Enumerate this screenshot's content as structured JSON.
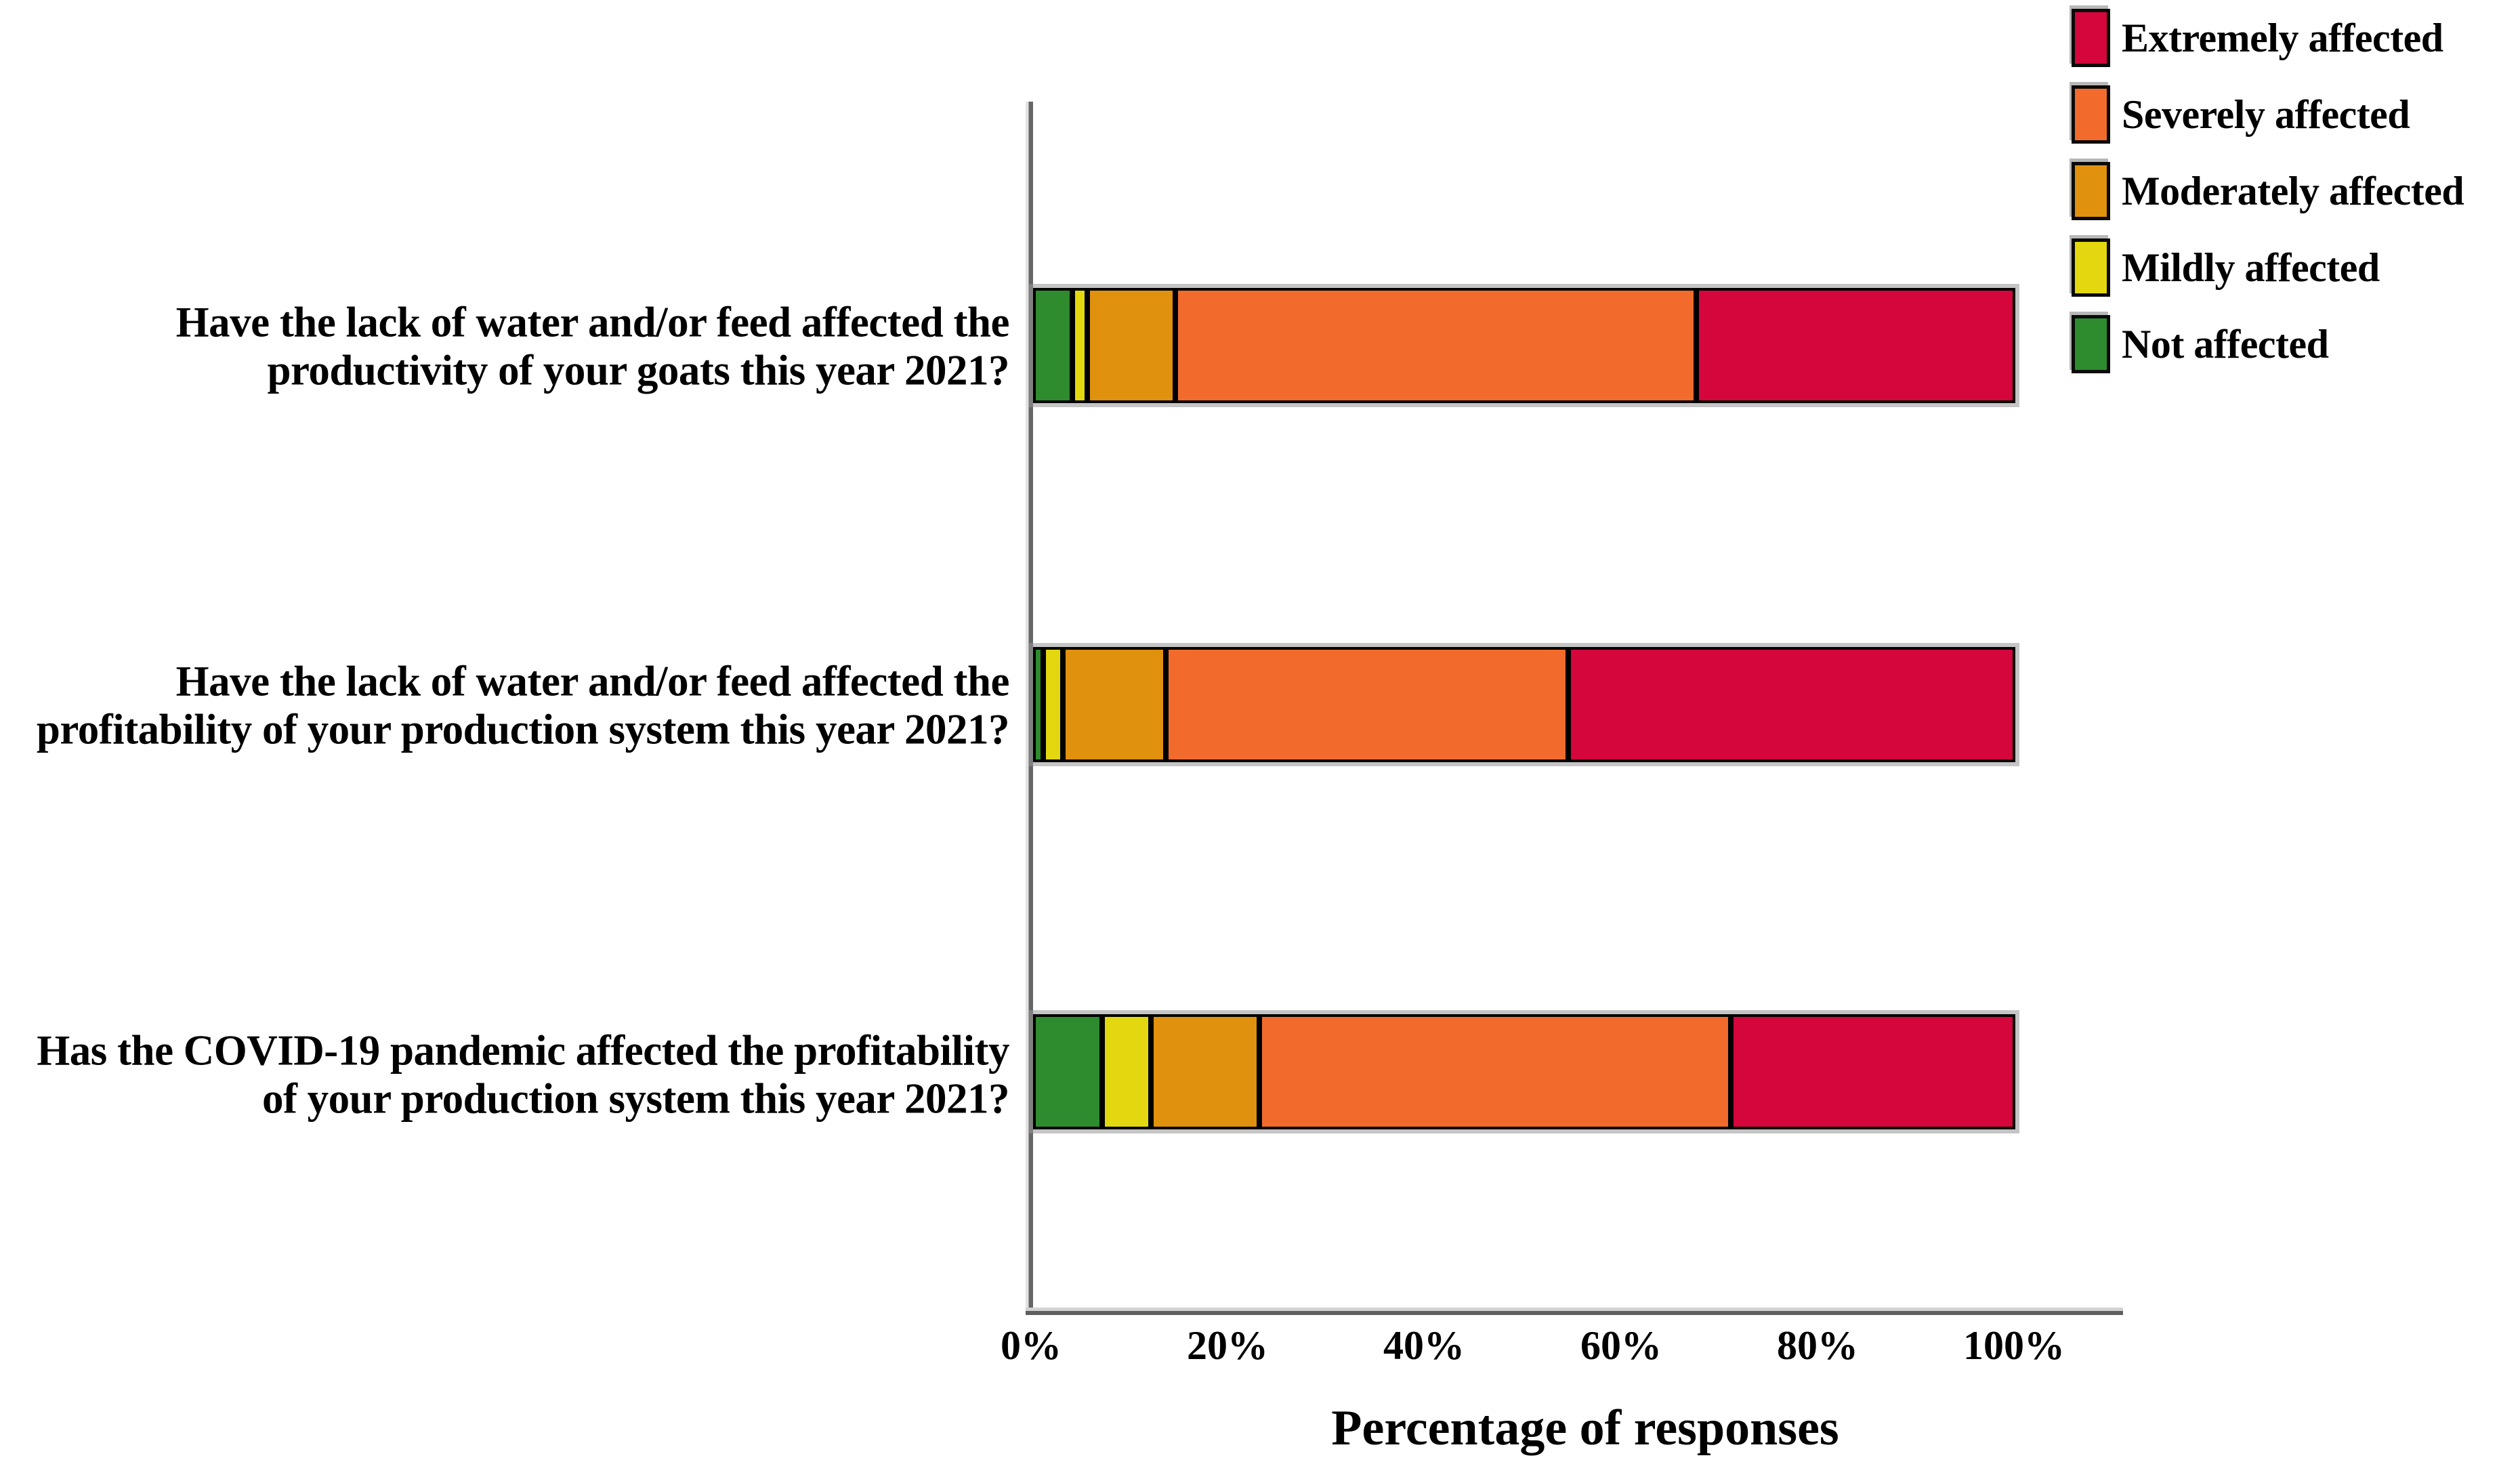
{
  "chart_data": {
    "type": "bar",
    "orientation": "horizontal-stacked",
    "title": "",
    "xlabel": "Percentage of responses",
    "ylabel": "",
    "xlim": [
      0,
      100
    ],
    "x_ticks": [
      "0%",
      "20%",
      "40%",
      "60%",
      "80%",
      "100%"
    ],
    "grid": false,
    "legend_position": "top-right",
    "categories": [
      "Have the lack of water and/or feed affected the productivity of your goats this year 2021?",
      "Have the lack of water and/or feed affected the profitability of your production system this year 2021?",
      "Has the COVID-19 pandemic affected the profitability of your production system this year 2021?"
    ],
    "stack_order_left_to_right": [
      "Not affected",
      "Mildly affected",
      "Moderately affected",
      "Severely affected",
      "Extremely affected"
    ],
    "series": [
      {
        "name": "Not affected",
        "color": "#2E8B2E",
        "values": [
          4,
          1,
          7
        ]
      },
      {
        "name": "Mildly affected",
        "color": "#E3D80F",
        "values": [
          1.5,
          2,
          5
        ]
      },
      {
        "name": "Moderately affected",
        "color": "#E0910D",
        "values": [
          9,
          10.5,
          11
        ]
      },
      {
        "name": "Severely affected",
        "color": "#F26B2C",
        "values": [
          53,
          41,
          48
        ]
      },
      {
        "name": "Extremely affected",
        "color": "#D4063C",
        "values": [
          32.5,
          45.5,
          29
        ]
      }
    ],
    "legend": [
      {
        "label": "Extremely affected",
        "color": "#D4063C"
      },
      {
        "label": "Severely affected",
        "color": "#F26B2C"
      },
      {
        "label": "Moderately affected",
        "color": "#E0910D"
      },
      {
        "label": "Mildly affected",
        "color": "#E3D80F"
      },
      {
        "label": "Not affected",
        "color": "#2E8B2E"
      }
    ]
  }
}
